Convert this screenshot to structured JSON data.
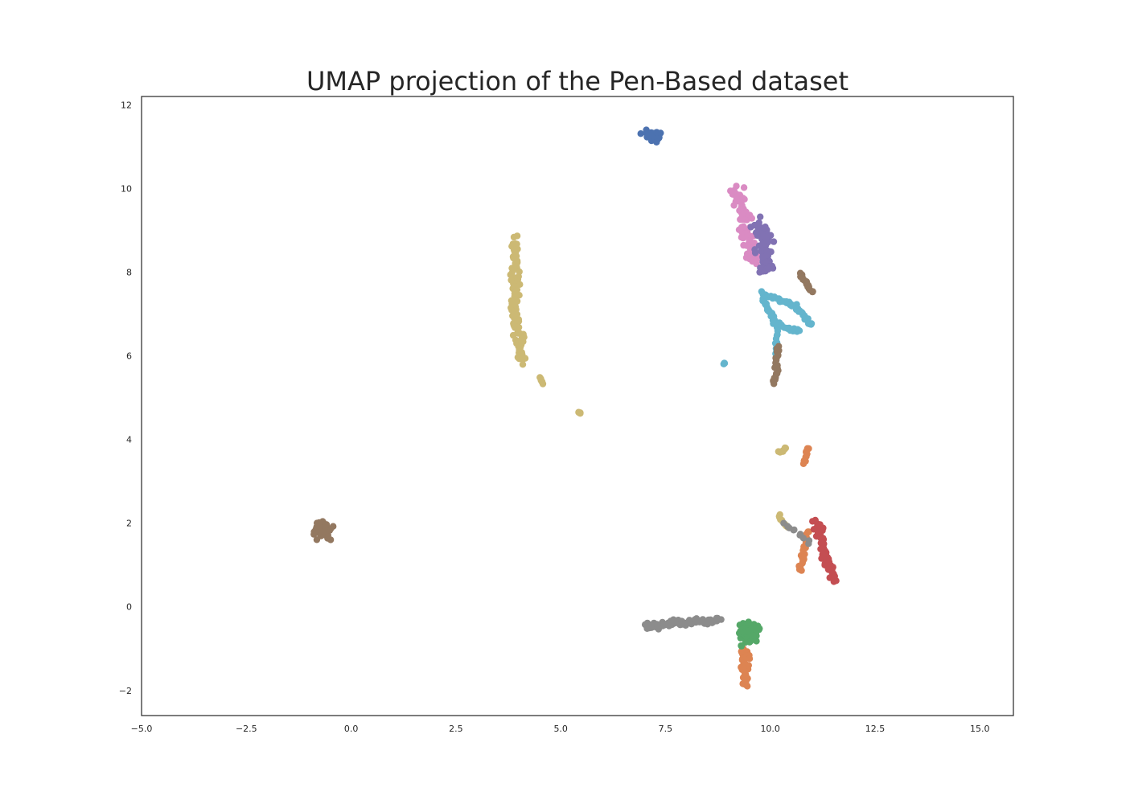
{
  "chart_data": {
    "type": "scatter",
    "title": "UMAP projection of the Pen-Based dataset",
    "xlabel": "",
    "ylabel": "",
    "xlim": [
      -5.0,
      15.8
    ],
    "ylim": [
      -2.6,
      12.2
    ],
    "xticks": [
      -5.0,
      -2.5,
      0.0,
      2.5,
      5.0,
      7.5,
      10.0,
      12.5,
      15.0
    ],
    "xtick_labels": [
      "−5.0",
      "−2.5",
      "0.0",
      "2.5",
      "5.0",
      "7.5",
      "10.0",
      "12.5",
      "15.0"
    ],
    "yticks": [
      -2,
      0,
      2,
      4,
      6,
      8,
      10,
      12
    ],
    "ytick_labels": [
      "−2",
      "0",
      "2",
      "4",
      "6",
      "8",
      "10",
      "12"
    ],
    "grid": false,
    "legend": "none",
    "colors": {
      "blue": "#4c72b0",
      "orange": "#dd8452",
      "green": "#55a868",
      "red": "#c44e52",
      "purple": "#8172b3",
      "brown": "#937860",
      "pink": "#da8bc3",
      "gray": "#8c8c8c",
      "olive": "#ccb974",
      "cyan": "#64b5cd"
    },
    "clusters": [
      {
        "color": "blue",
        "type": "blob",
        "center": [
          7.2,
          11.25
        ],
        "spread": [
          0.2,
          0.12
        ],
        "n": 40
      },
      {
        "color": "pink",
        "type": "line",
        "points": [
          [
            9.2,
            10.0
          ],
          [
            9.6,
            8.2
          ]
        ],
        "width": 0.15,
        "n": 90
      },
      {
        "color": "purple",
        "type": "line",
        "points": [
          [
            9.8,
            9.2
          ],
          [
            9.9,
            8.0
          ]
        ],
        "width": 0.18,
        "n": 80
      },
      {
        "color": "cyan",
        "type": "line",
        "points": [
          [
            9.8,
            7.5
          ],
          [
            10.6,
            7.2
          ],
          [
            11.0,
            6.7
          ]
        ],
        "width": 0.05,
        "n": 50
      },
      {
        "color": "cyan",
        "type": "line",
        "points": [
          [
            9.8,
            7.4
          ],
          [
            10.1,
            6.8
          ],
          [
            10.5,
            6.6
          ],
          [
            10.7,
            6.6
          ]
        ],
        "width": 0.05,
        "n": 40
      },
      {
        "color": "cyan",
        "type": "line",
        "points": [
          [
            10.2,
            6.8
          ],
          [
            10.1,
            6.0
          ]
        ],
        "width": 0.03,
        "n": 12
      },
      {
        "color": "cyan",
        "type": "blob",
        "center": [
          8.9,
          5.8
        ],
        "spread": [
          0.03,
          0.03
        ],
        "n": 4
      },
      {
        "color": "brown",
        "type": "line",
        "points": [
          [
            10.7,
            8.0
          ],
          [
            11.0,
            7.5
          ]
        ],
        "width": 0.04,
        "n": 20
      },
      {
        "color": "brown",
        "type": "line",
        "points": [
          [
            10.2,
            6.2
          ],
          [
            10.1,
            5.3
          ]
        ],
        "width": 0.05,
        "n": 25
      },
      {
        "color": "olive",
        "type": "line",
        "points": [
          [
            3.9,
            8.8
          ],
          [
            3.9,
            7.2
          ],
          [
            4.1,
            5.8
          ]
        ],
        "width": 0.1,
        "n": 110
      },
      {
        "color": "olive",
        "type": "line",
        "points": [
          [
            4.5,
            5.5
          ],
          [
            4.6,
            5.3
          ]
        ],
        "width": 0.02,
        "n": 6
      },
      {
        "color": "olive",
        "type": "blob",
        "center": [
          5.45,
          4.65
        ],
        "spread": [
          0.03,
          0.03
        ],
        "n": 4
      },
      {
        "color": "olive",
        "type": "line",
        "points": [
          [
            10.2,
            3.7
          ],
          [
            10.4,
            3.8
          ]
        ],
        "width": 0.03,
        "n": 8
      },
      {
        "color": "olive",
        "type": "line",
        "points": [
          [
            10.2,
            2.2
          ],
          [
            10.4,
            1.9
          ]
        ],
        "width": 0.04,
        "n": 10
      },
      {
        "color": "orange",
        "type": "line",
        "points": [
          [
            10.9,
            3.8
          ],
          [
            10.8,
            3.4
          ]
        ],
        "width": 0.04,
        "n": 12
      },
      {
        "color": "orange",
        "type": "line",
        "points": [
          [
            10.9,
            1.8
          ],
          [
            10.7,
            0.8
          ]
        ],
        "width": 0.05,
        "n": 25
      },
      {
        "color": "orange",
        "type": "line",
        "points": [
          [
            9.4,
            -1.0
          ],
          [
            9.4,
            -1.9
          ]
        ],
        "width": 0.1,
        "n": 50
      },
      {
        "color": "red",
        "type": "line",
        "points": [
          [
            11.1,
            2.0
          ],
          [
            11.5,
            0.6
          ]
        ],
        "width": 0.1,
        "n": 70
      },
      {
        "color": "gray",
        "type": "line",
        "points": [
          [
            7.0,
            -0.45
          ],
          [
            8.8,
            -0.3
          ]
        ],
        "width": 0.08,
        "n": 90
      },
      {
        "color": "gray",
        "type": "line",
        "points": [
          [
            10.3,
            2.0
          ],
          [
            11.0,
            1.5
          ]
        ],
        "width": 0.05,
        "n": 10
      },
      {
        "color": "green",
        "type": "blob",
        "center": [
          9.5,
          -0.6
        ],
        "spread": [
          0.22,
          0.25
        ],
        "n": 70
      },
      {
        "color": "brown",
        "type": "blob",
        "center": [
          -0.7,
          1.8
        ],
        "spread": [
          0.2,
          0.2
        ],
        "n": 60
      }
    ]
  }
}
